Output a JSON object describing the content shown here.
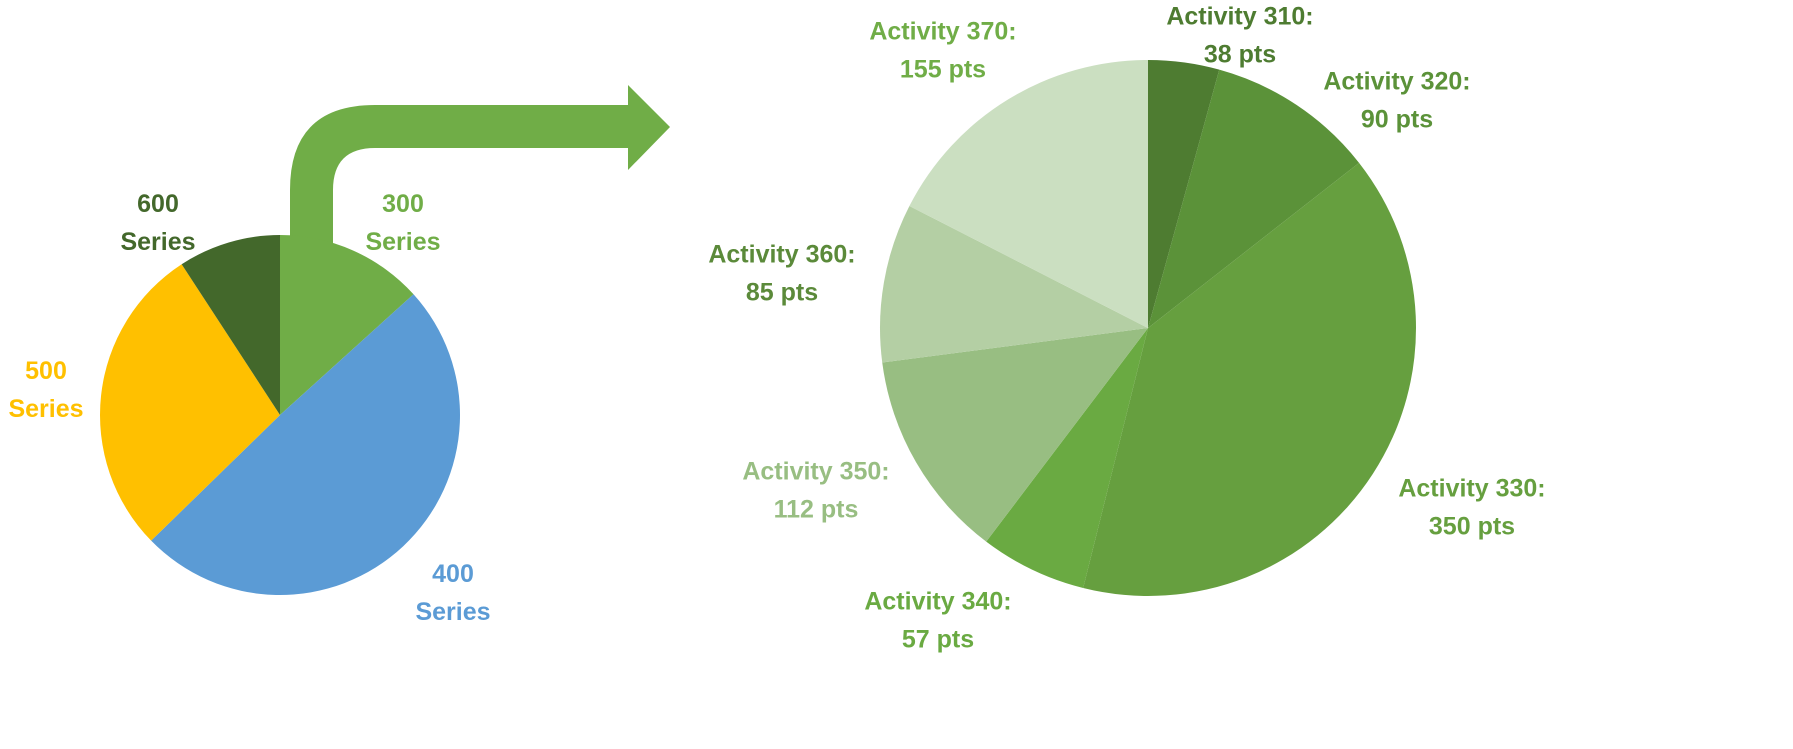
{
  "chart_data": [
    {
      "type": "pie",
      "categories": [
        "300 Series",
        "400 Series",
        "500 Series",
        "600 Series"
      ],
      "values": [
        13.3,
        49.4,
        28.1,
        9.2
      ],
      "colors": [
        "#70ad47",
        "#5b9bd5",
        "#ffc000",
        "#43682b"
      ],
      "label_colors": [
        "#70ad47",
        "#5b9bd5",
        "#ffc000",
        "#43682b"
      ]
    },
    {
      "type": "pie",
      "categories": [
        "Activity 310:",
        "Activity 320:",
        "Activity 330:",
        "Activity 340:",
        "Activity 350:",
        "Activity 360:",
        "Activity 370:"
      ],
      "values": [
        38,
        90,
        350,
        57,
        112,
        85,
        155
      ],
      "value_labels": [
        "38 pts",
        "90 pts",
        "350 pts",
        "57 pts",
        "112 pts",
        "85 pts",
        "155 pts"
      ],
      "colors": [
        "#4e7c31",
        "#5b9239",
        "#669f3f",
        "#6aaa42",
        "#98be82",
        "#b4cfa4",
        "#cbdfc1"
      ],
      "label_colors": [
        "#4e7c31",
        "#5b9239",
        "#669f3f",
        "#6aaa42",
        "#98be82",
        "#5b8a3a",
        "#70ad47"
      ]
    }
  ]
}
